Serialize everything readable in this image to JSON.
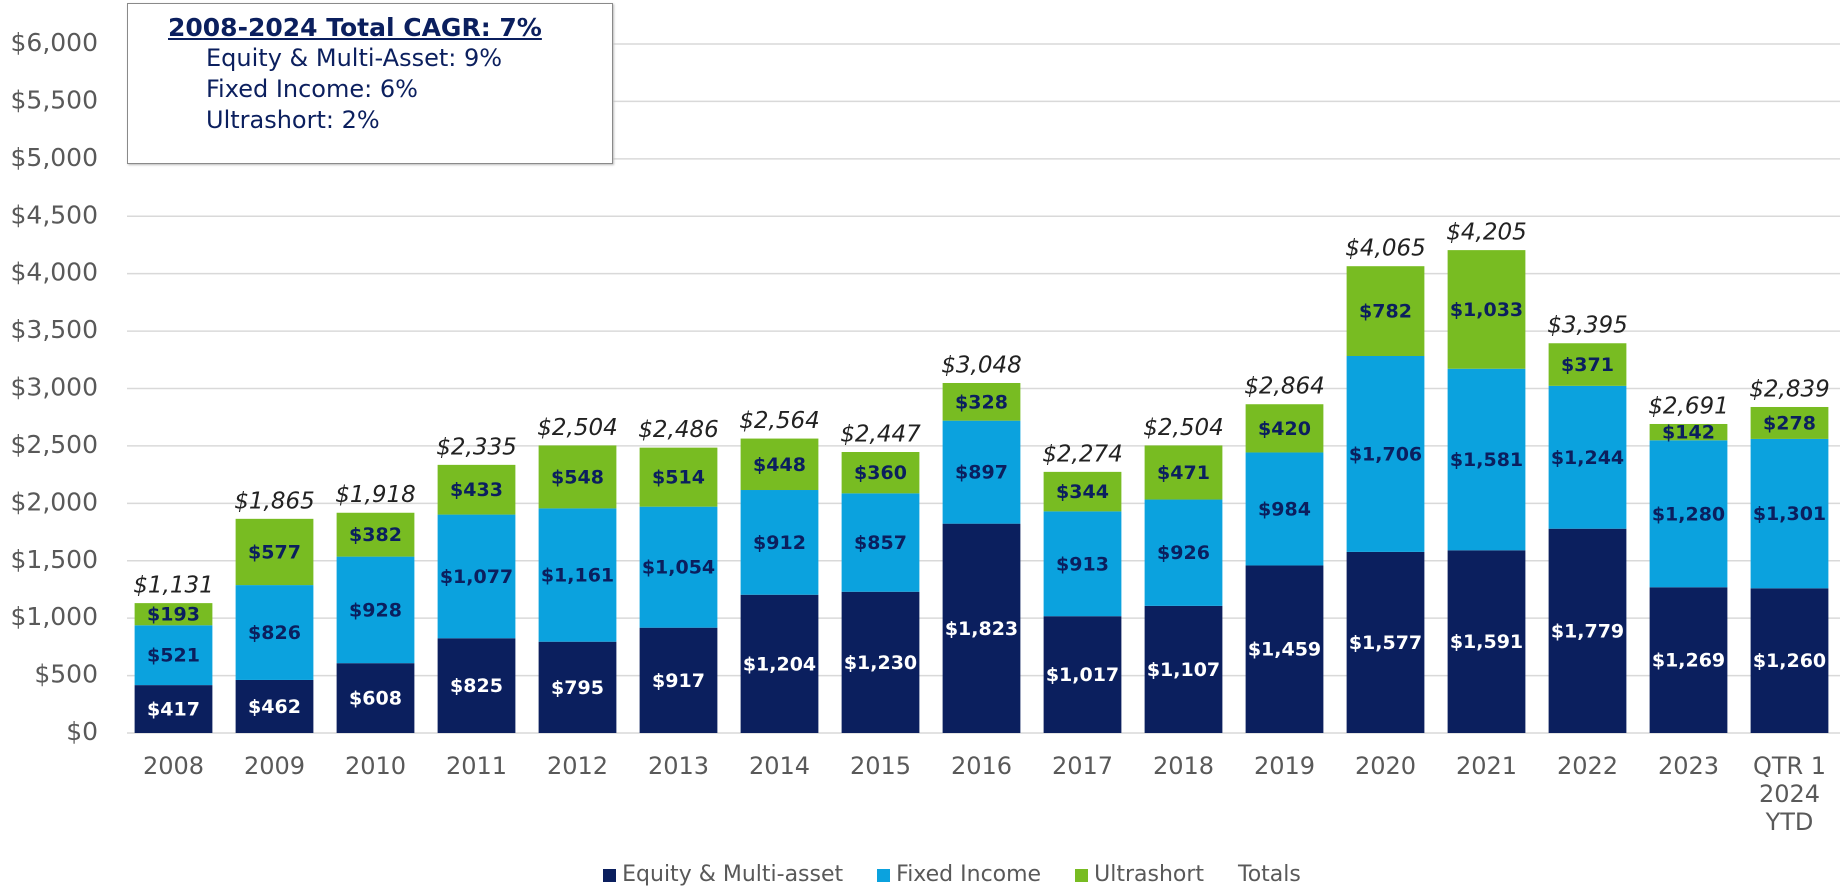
{
  "chart_data": {
    "type": "stacked-bar",
    "annotation": {
      "title": "2008-2024 Total CAGR: 7%",
      "lines": [
        "Equity & Multi-Asset: 9%",
        "Fixed Income: 6%",
        "Ultrashort: 2%"
      ]
    },
    "categories": [
      "2008",
      "2009",
      "2010",
      "2011",
      "2012",
      "2013",
      "2014",
      "2015",
      "2016",
      "2017",
      "2018",
      "2019",
      "2020",
      "2021",
      "2022",
      "2023",
      "QTR 1 2024 YTD"
    ],
    "series": [
      {
        "name": "Equity & Multi-asset",
        "color": "#0b1f5e",
        "values": [
          417,
          462,
          608,
          825,
          795,
          917,
          1204,
          1230,
          1823,
          1017,
          1107,
          1459,
          1577,
          1591,
          1779,
          1269,
          1260
        ],
        "value_labels": [
          "$417",
          "$462",
          "$608",
          "$825",
          "$795",
          "$917",
          "$1,204",
          "$1,230",
          "$1,823",
          "$1,017",
          "$1,107",
          "$1,459",
          "$1,577",
          "$1,591",
          "$1,779",
          "$1,269",
          "$1,260"
        ]
      },
      {
        "name": "Fixed Income",
        "color": "#0ba2de",
        "values": [
          521,
          826,
          928,
          1077,
          1161,
          1054,
          912,
          857,
          897,
          913,
          926,
          984,
          1706,
          1581,
          1244,
          1280,
          1301
        ],
        "value_labels": [
          "$521",
          "$826",
          "$928",
          "$1,077",
          "$1,161",
          "$1,054",
          "$912",
          "$857",
          "$897",
          "$913",
          "$926",
          "$984",
          "$1,706",
          "$1,581",
          "$1,244",
          "$1,280",
          "$1,301"
        ]
      },
      {
        "name": "Ultrashort",
        "color": "#78bc22",
        "values": [
          193,
          577,
          382,
          433,
          548,
          514,
          448,
          360,
          328,
          344,
          471,
          420,
          782,
          1033,
          371,
          142,
          278
        ],
        "value_labels": [
          "$193",
          "$577",
          "$382",
          "$433",
          "$548",
          "$514",
          "$448",
          "$360",
          "$328",
          "$344",
          "$471",
          "$420",
          "$782",
          "$1,033",
          "$371",
          "$142",
          "$278"
        ]
      }
    ],
    "totals": {
      "name": "Totals",
      "values": [
        1131,
        1865,
        1918,
        2335,
        2504,
        2486,
        2564,
        2447,
        3048,
        2274,
        2504,
        2864,
        4065,
        4205,
        3395,
        2691,
        2839
      ],
      "value_labels": [
        "$1,131",
        "$1,865",
        "$1,918",
        "$2,335",
        "$2,504",
        "$2,486",
        "$2,564",
        "$2,447",
        "$3,048",
        "$2,274",
        "$2,504",
        "$2,864",
        "$4,065",
        "$4,205",
        "$3,395",
        "$2,691",
        "$2,839"
      ]
    },
    "ylim": [
      0,
      6000
    ],
    "yticks": [
      {
        "value": 0,
        "label": "$0"
      },
      {
        "value": 500,
        "label": "$500"
      },
      {
        "value": 1000,
        "label": "$1,000"
      },
      {
        "value": 1500,
        "label": "$1,500"
      },
      {
        "value": 2000,
        "label": "$2,000"
      },
      {
        "value": 2500,
        "label": "$2,500"
      },
      {
        "value": 3000,
        "label": "$3,000"
      },
      {
        "value": 3500,
        "label": "$3,500"
      },
      {
        "value": 4000,
        "label": "$4,000"
      },
      {
        "value": 4500,
        "label": "$4,500"
      },
      {
        "value": 5000,
        "label": "$5,000"
      },
      {
        "value": 5500,
        "label": "$5,500"
      },
      {
        "value": 6000,
        "label": "$6,000"
      }
    ],
    "grid": true
  }
}
